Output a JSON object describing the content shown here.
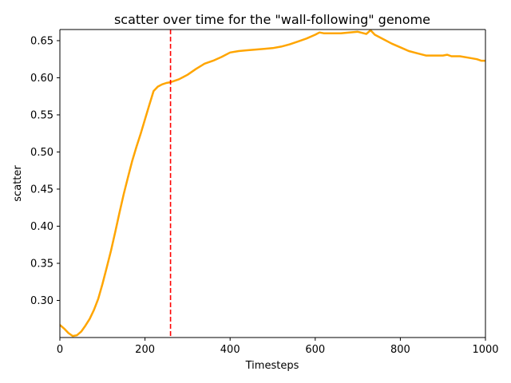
{
  "chart_data": {
    "type": "line",
    "title": "scatter over time for the \"wall-following\" genome",
    "xlabel": "Timesteps",
    "ylabel": "scatter",
    "xlim": [
      0,
      1000
    ],
    "ylim": [
      0.25,
      0.665
    ],
    "xticks": [
      0,
      200,
      400,
      600,
      800,
      1000
    ],
    "yticks": [
      0.3,
      0.35,
      0.4,
      0.45,
      0.5,
      0.55,
      0.6,
      0.65
    ],
    "xtick_labels": [
      "0",
      "200",
      "400",
      "600",
      "800",
      "1000"
    ],
    "ytick_labels": [
      "0.30",
      "0.35",
      "0.40",
      "0.45",
      "0.50",
      "0.55",
      "0.60",
      "0.65"
    ],
    "grid": false,
    "colors": {
      "series": "#FFA500",
      "vline": "#FF0000"
    },
    "series": [
      {
        "x": [
          0,
          10,
          20,
          30,
          40,
          50,
          60,
          70,
          80,
          90,
          100,
          110,
          120,
          130,
          140,
          150,
          160,
          170,
          180,
          190,
          200,
          210,
          220,
          230,
          240,
          250,
          260,
          270,
          280,
          290,
          300,
          320,
          340,
          360,
          380,
          400,
          420,
          440,
          460,
          480,
          500,
          520,
          540,
          560,
          580,
          600,
          610,
          620,
          640,
          660,
          680,
          700,
          720,
          730,
          740,
          760,
          780,
          800,
          820,
          840,
          860,
          880,
          900,
          910,
          920,
          940,
          960,
          980,
          990,
          1000
        ],
        "y": [
          0.267,
          0.262,
          0.256,
          0.252,
          0.253,
          0.258,
          0.266,
          0.275,
          0.287,
          0.302,
          0.322,
          0.344,
          0.367,
          0.392,
          0.418,
          0.443,
          0.466,
          0.488,
          0.507,
          0.525,
          0.544,
          0.563,
          0.582,
          0.588,
          0.591,
          0.593,
          0.594,
          0.596,
          0.598,
          0.601,
          0.604,
          0.612,
          0.619,
          0.623,
          0.628,
          0.634,
          0.636,
          0.637,
          0.638,
          0.639,
          0.64,
          0.642,
          0.645,
          0.649,
          0.653,
          0.658,
          0.661,
          0.66,
          0.66,
          0.66,
          0.661,
          0.662,
          0.659,
          0.664,
          0.658,
          0.652,
          0.646,
          0.641,
          0.636,
          0.633,
          0.63,
          0.63,
          0.63,
          0.631,
          0.629,
          0.629,
          0.627,
          0.625,
          0.623,
          0.623
        ]
      }
    ],
    "vline": {
      "x": 260,
      "style": "dashed"
    }
  }
}
